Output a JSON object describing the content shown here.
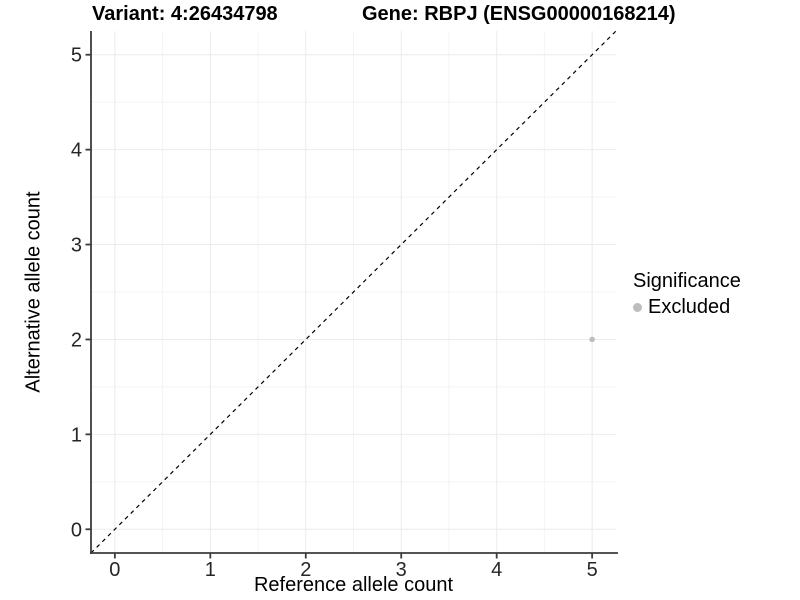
{
  "chart_data": {
    "type": "scatter",
    "title_left": "Variant: 4:26434798",
    "title_right": "Gene: RBPJ (ENSG00000168214)",
    "xlabel": "Reference allele count",
    "ylabel": "Alternative allele count",
    "xlim": [
      0,
      5
    ],
    "ylim": [
      0,
      5
    ],
    "x_ticks": [
      "0",
      "1",
      "2",
      "3",
      "4",
      "5"
    ],
    "y_ticks": [
      "0",
      "1",
      "2",
      "3",
      "4",
      "5"
    ],
    "grid": "major+minor",
    "points": [
      {
        "x": 5,
        "y": 2,
        "series": "Excluded"
      }
    ],
    "identity_line": {
      "slope": 1,
      "intercept": 0,
      "style": "dashed",
      "color": "#000000"
    },
    "legend": {
      "title": "Significance",
      "position": "right",
      "entries": [
        {
          "label": "Excluded",
          "marker": "circle",
          "color": "#bdbdbd"
        }
      ]
    },
    "colors": {
      "background": "#ffffff",
      "grid_major": "#ebebeb",
      "grid_minor": "#f4f4f4",
      "axis_line": "#3c3c3c",
      "tick_text": "#262626",
      "point": "#bdbdbd"
    }
  }
}
